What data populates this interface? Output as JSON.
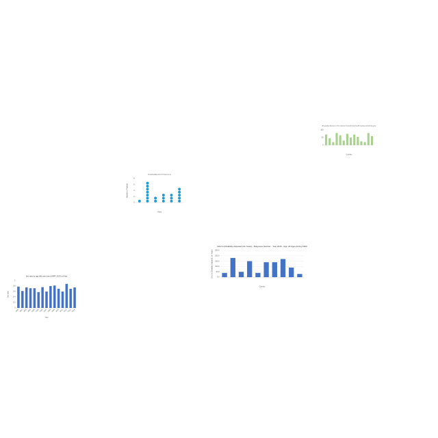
{
  "chart_data": [
    {
      "type": "bar",
      "title": "Air quality indicators in the national environmental health tracking network by year",
      "xlabel": "Country",
      "categories": [
        null,
        null,
        null,
        null,
        null,
        null,
        null,
        null,
        null,
        null,
        null,
        null,
        null,
        null
      ],
      "values": [
        70,
        45,
        20,
        80,
        65,
        30,
        75,
        50,
        70,
        55,
        25,
        20,
        80,
        60
      ],
      "color": "#a9d18e",
      "ylim": [
        0,
        100
      ],
      "yticks": [
        0,
        50,
        100
      ],
      "grid": false
    },
    {
      "type": "dot",
      "title": "Disability Adjusted Life Expectancy",
      "xlabel": "Years",
      "ylabel": "Number of Patients",
      "categories": [
        null,
        null,
        null,
        null,
        null,
        null
      ],
      "values": [
        1,
        7,
        2,
        3,
        3,
        5
      ],
      "color": "#1f9bd1",
      "ylim": [
        0,
        8
      ],
      "yticks": [
        0,
        2,
        4,
        6,
        8
      ],
      "grid": false
    },
    {
      "type": "bar",
      "title": "Sex ratio by age (M) over time (UNPP, 2017) in Kilos",
      "xlabel": "Year",
      "ylabel": "Sex ratio",
      "categories": [
        "2000",
        "2001",
        "2002",
        "2003",
        "2004",
        "2005",
        "2006",
        "2007",
        "2008",
        "2009",
        "2010",
        "2011",
        "2012",
        "2013",
        "2014"
      ],
      "values": [
        0.78,
        0.62,
        0.75,
        0.72,
        0.72,
        0.58,
        0.76,
        0.6,
        0.8,
        0.82,
        0.7,
        0.6,
        0.88,
        0.7,
        0.75
      ],
      "color": "#4472c4",
      "ylim": [
        0,
        1
      ],
      "yticks": [
        0,
        0.2,
        0.4,
        0.6,
        0.8,
        1
      ],
      "grid": false
    },
    {
      "type": "bar",
      "title": "DALYs (Disability-Adjusted Life Years) - Diagnosis Number - Year 2016 - Age: All Ages during 1990",
      "xlabel": "Country",
      "ylabel": "DALYs (Disability-Adjusted Life Years)",
      "categories": [
        null,
        null,
        null,
        null,
        null,
        null,
        null,
        null,
        null,
        null
      ],
      "values": [
        40,
        180,
        50,
        150,
        40,
        140,
        140,
        170,
        90,
        30
      ],
      "color": "#4472c4",
      "ylim": [
        0,
        250
      ],
      "yticks": [
        {
          "value": 0,
          "label": "0.0"
        },
        {
          "value": 50,
          "label": "50.0"
        },
        {
          "value": 100,
          "label": "100.0"
        },
        {
          "value": 150,
          "label": "150.0"
        },
        {
          "value": 200,
          "label": "200.0"
        },
        {
          "value": 250,
          "label": "250.0"
        }
      ],
      "grid": true
    }
  ]
}
